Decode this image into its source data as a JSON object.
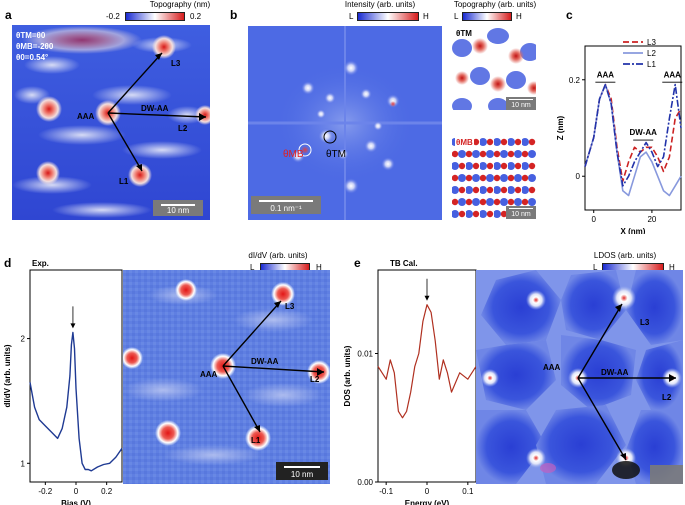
{
  "panels": {
    "a": {
      "label": "a",
      "colorbar": {
        "title": "Topography (nm)",
        "min": "-0.2",
        "max": "0.2"
      },
      "params": [
        "θTM=θ0",
        "θMB=-2θ0",
        "θ0=0.54°"
      ],
      "labels": {
        "aaa": "AAA",
        "dwaa": "DW-AA",
        "l1": "L1",
        "l2": "L2",
        "l3": "L3"
      },
      "scalebar": "10 nm"
    },
    "b": {
      "label": "b",
      "colorbar": {
        "title": "Intensity (arb. units)",
        "min": "L",
        "max": "H"
      },
      "theta_mb": "θMB",
      "theta_tm": "θTM",
      "scalebar": "0.1 nm⁻¹",
      "inset_colorbar": {
        "title": "Topography (arb. units)",
        "min": "L",
        "max": "H"
      },
      "inset_top": {
        "tag": "θTM",
        "scalebar": "10 nm"
      },
      "inset_bottom": {
        "tag": "θMB",
        "scalebar": "10 nm"
      }
    },
    "c": {
      "label": "c"
    },
    "d": {
      "label": "d",
      "tag": "Exp.",
      "colorbar": {
        "title": "dI/dV (arb. units)",
        "min": "L",
        "max": "H"
      },
      "labels": {
        "aaa": "AAA",
        "dwaa": "DW-AA",
        "l1": "L1",
        "l2": "L2",
        "l3": "L3"
      },
      "scalebar": "10 nm"
    },
    "e": {
      "label": "e",
      "tag": "TB Cal.",
      "colorbar": {
        "title": "LDOS (arb. units)",
        "min": "L",
        "max": "H"
      },
      "labels": {
        "aaa": "AAA",
        "dwaa": "DW-AA",
        "l2": "L2",
        "l3": "L3"
      }
    }
  },
  "chart_data": [
    {
      "id": "panel-c",
      "type": "line",
      "xlabel": "X (nm)",
      "ylabel": "Z (nm)",
      "xlim": [
        -3,
        30
      ],
      "ylim": [
        -0.07,
        0.27
      ],
      "xticks": [
        0,
        20
      ],
      "yticks": [
        0.0,
        0.2
      ],
      "legend": "top-right",
      "annotations": [
        "AAA",
        "DW-AA",
        "AAA"
      ],
      "series": [
        {
          "name": "L3",
          "color": "#cc2222",
          "dash": "dashed",
          "x": [
            -3,
            0,
            2,
            4,
            6,
            8,
            10,
            12,
            14,
            16,
            18,
            20,
            22,
            24,
            26,
            28,
            30
          ],
          "y": [
            0.02,
            0.08,
            0.16,
            0.19,
            0.16,
            0.06,
            -0.01,
            0.03,
            0.06,
            0.05,
            0.06,
            0.06,
            0.04,
            0.01,
            0.04,
            0.12,
            0.14
          ]
        },
        {
          "name": "L2",
          "color": "#8899dd",
          "dash": "solid",
          "x": [
            -3,
            0,
            2,
            4,
            6,
            8,
            10,
            12,
            14,
            16,
            18,
            20,
            22,
            24,
            26,
            28,
            30
          ],
          "y": [
            0.02,
            0.08,
            0.16,
            0.19,
            0.15,
            0.05,
            -0.03,
            -0.04,
            0.0,
            0.04,
            0.05,
            0.03,
            0.0,
            -0.03,
            -0.04,
            -0.02,
            0.0
          ]
        },
        {
          "name": "L1",
          "color": "#2233aa",
          "dash": "dashdot",
          "x": [
            -3,
            0,
            2,
            4,
            6,
            8,
            10,
            12,
            14,
            16,
            18,
            20,
            22,
            24,
            26,
            28,
            30
          ],
          "y": [
            0.02,
            0.08,
            0.16,
            0.19,
            0.15,
            0.05,
            -0.02,
            0.0,
            0.03,
            0.05,
            0.07,
            0.05,
            0.02,
            0.04,
            0.12,
            0.19,
            0.1
          ]
        }
      ]
    },
    {
      "id": "panel-d-spectrum",
      "type": "line",
      "xlabel": "Bias (V)",
      "ylabel": "dI/dV (arb. units)",
      "xlim": [
        -0.3,
        0.3
      ],
      "ylim": [
        0.85,
        2.55
      ],
      "xticks": [
        -0.2,
        0,
        0.2
      ],
      "yticks": [
        1,
        2
      ],
      "arrow_x": -0.02,
      "series": [
        {
          "name": "",
          "color": "#1f3a93",
          "x": [
            -0.3,
            -0.27,
            -0.24,
            -0.2,
            -0.16,
            -0.12,
            -0.09,
            -0.06,
            -0.04,
            -0.03,
            -0.02,
            -0.01,
            0.0,
            0.02,
            0.04,
            0.06,
            0.08,
            0.1,
            0.14,
            0.18,
            0.22,
            0.26,
            0.3
          ],
          "y": [
            1.65,
            1.45,
            1.35,
            1.3,
            1.25,
            1.2,
            1.28,
            1.45,
            1.7,
            1.95,
            2.05,
            1.92,
            1.6,
            1.2,
            1.0,
            0.95,
            0.95,
            0.94,
            0.97,
            0.99,
            1.0,
            1.05,
            1.12
          ]
        }
      ]
    },
    {
      "id": "panel-e-dos",
      "type": "line",
      "xlabel": "Energy (eV)",
      "ylabel": "DOS (arb. units)",
      "xlim": [
        -0.12,
        0.12
      ],
      "ylim": [
        0,
        0.0165
      ],
      "xticks": [
        -0.1,
        0,
        0.1
      ],
      "yticks": [
        0.0,
        0.01
      ],
      "ytick_labels": [
        "0.00",
        "0.01"
      ],
      "arrow_x": 0.0,
      "series": [
        {
          "name": "",
          "color": "#b03020",
          "x": [
            -0.12,
            -0.11,
            -0.1,
            -0.09,
            -0.08,
            -0.07,
            -0.06,
            -0.05,
            -0.04,
            -0.03,
            -0.02,
            -0.01,
            0.0,
            0.01,
            0.02,
            0.03,
            0.04,
            0.05,
            0.06,
            0.08,
            0.1,
            0.12
          ],
          "y": [
            0.009,
            0.0085,
            0.008,
            0.0095,
            0.0085,
            0.0055,
            0.005,
            0.0055,
            0.007,
            0.009,
            0.01,
            0.0125,
            0.0138,
            0.0132,
            0.011,
            0.008,
            0.0095,
            0.0085,
            0.007,
            0.0085,
            0.008,
            0.009
          ]
        }
      ]
    }
  ]
}
